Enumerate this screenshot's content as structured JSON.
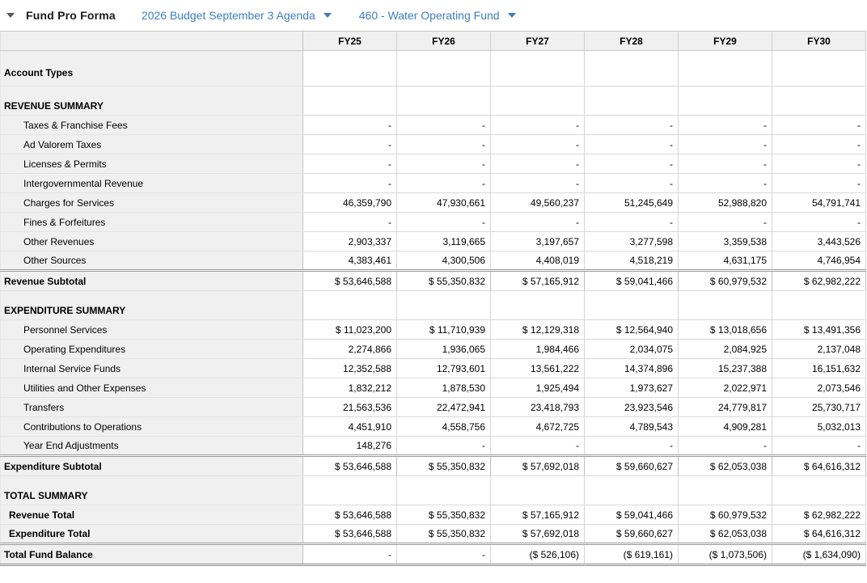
{
  "colors": {
    "accent_blue": "#3c7dc0",
    "label_column_bg": "#f0f0f0",
    "header_row_bg": "#f0f0f0"
  },
  "header": {
    "collapse_icon": "triangle-down-icon",
    "title": "Fund Pro Forma",
    "dropdowns": [
      {
        "label": "2026 Budget September 3 Agenda"
      },
      {
        "label": "460 - Water Operating Fund"
      }
    ]
  },
  "table": {
    "columns": [
      "FY25",
      "FY26",
      "FY27",
      "FY28",
      "FY29",
      "FY30"
    ],
    "rows": [
      {
        "style": "tall",
        "label": "Account Types",
        "values": [
          "",
          "",
          "",
          "",
          "",
          ""
        ]
      },
      {
        "style": "section",
        "label": "REVENUE SUMMARY",
        "values": [
          "",
          "",
          "",
          "",
          "",
          ""
        ]
      },
      {
        "style": "detail",
        "label": "Taxes & Franchise Fees",
        "values": [
          "-",
          "-",
          "-",
          "-",
          "-",
          "-"
        ]
      },
      {
        "style": "detail",
        "label": "Ad Valorem Taxes",
        "values": [
          "-",
          "-",
          "-",
          "-",
          "-",
          "-"
        ]
      },
      {
        "style": "detail",
        "label": "Licenses & Permits",
        "values": [
          "-",
          "-",
          "-",
          "-",
          "-",
          "-"
        ]
      },
      {
        "style": "detail",
        "label": "Intergovernmental Revenue",
        "values": [
          "-",
          "-",
          "-",
          "-",
          "-",
          "-"
        ]
      },
      {
        "style": "detail",
        "label": "Charges for Services",
        "values": [
          "46,359,790",
          "47,930,661",
          "49,560,237",
          "51,245,649",
          "52,988,820",
          "54,791,741"
        ]
      },
      {
        "style": "detail",
        "label": "Fines & Forfeitures",
        "values": [
          "-",
          "-",
          "-",
          "-",
          "-",
          "-"
        ]
      },
      {
        "style": "detail",
        "label": "Other Revenues",
        "values": [
          "2,903,337",
          "3,119,665",
          "3,197,657",
          "3,277,598",
          "3,359,538",
          "3,443,526"
        ]
      },
      {
        "style": "detail",
        "label": "Other Sources",
        "values": [
          "4,383,461",
          "4,300,506",
          "4,408,019",
          "4,518,219",
          "4,631,175",
          "4,746,954"
        ]
      },
      {
        "style": "subtotal",
        "label": "Revenue Subtotal",
        "values": [
          "$ 53,646,588",
          "$ 55,350,832",
          "$ 57,165,912",
          "$ 59,041,466",
          "$ 60,979,532",
          "$ 62,982,222"
        ]
      },
      {
        "style": "section",
        "label": "EXPENDITURE SUMMARY",
        "values": [
          "",
          "",
          "",
          "",
          "",
          ""
        ]
      },
      {
        "style": "detail",
        "label": "Personnel Services",
        "values": [
          "$ 11,023,200",
          "$ 11,710,939",
          "$ 12,129,318",
          "$ 12,564,940",
          "$ 13,018,656",
          "$ 13,491,356"
        ]
      },
      {
        "style": "detail",
        "label": "Operating Expenditures",
        "values": [
          "2,274,866",
          "1,936,065",
          "1,984,466",
          "2,034,075",
          "2,084,925",
          "2,137,048"
        ]
      },
      {
        "style": "detail",
        "label": "Internal Service Funds",
        "values": [
          "12,352,588",
          "12,793,601",
          "13,561,222",
          "14,374,896",
          "15,237,388",
          "16,151,632"
        ]
      },
      {
        "style": "detail",
        "label": "Utilities and Other Expenses",
        "values": [
          "1,832,212",
          "1,878,530",
          "1,925,494",
          "1,973,627",
          "2,022,971",
          "2,073,546"
        ]
      },
      {
        "style": "detail",
        "label": "Transfers",
        "values": [
          "21,563,536",
          "22,472,941",
          "23,418,793",
          "23,923,546",
          "24,779,817",
          "25,730,717"
        ]
      },
      {
        "style": "detail",
        "label": "Contributions to Operations",
        "values": [
          "4,451,910",
          "4,558,756",
          "4,672,725",
          "4,789,543",
          "4,909,281",
          "5,032,013"
        ]
      },
      {
        "style": "detail",
        "label": "Year End Adjustments",
        "values": [
          "148,276",
          "-",
          "-",
          "-",
          "-",
          "-"
        ]
      },
      {
        "style": "subtotal",
        "label": "Expenditure Subtotal",
        "values": [
          "$ 53,646,588",
          "$ 55,350,832",
          "$ 57,692,018",
          "$ 59,660,627",
          "$ 62,053,038",
          "$ 64,616,312"
        ]
      },
      {
        "style": "section",
        "label": "TOTAL SUMMARY",
        "values": [
          "",
          "",
          "",
          "",
          "",
          ""
        ]
      },
      {
        "style": "total",
        "label": "Revenue Total",
        "values": [
          "$ 53,646,588",
          "$ 55,350,832",
          "$ 57,165,912",
          "$ 59,041,466",
          "$ 60,979,532",
          "$ 62,982,222"
        ]
      },
      {
        "style": "total",
        "label": "Expenditure Total",
        "values": [
          "$ 53,646,588",
          "$ 55,350,832",
          "$ 57,692,018",
          "$ 59,660,627",
          "$ 62,053,038",
          "$ 64,616,312"
        ]
      },
      {
        "style": "grandtotal",
        "label": "Total Fund Balance",
        "values": [
          "-",
          "-",
          "($ 526,106)",
          "($ 619,161)",
          "($ 1,073,506)",
          "($ 1,634,090)"
        ]
      }
    ]
  }
}
